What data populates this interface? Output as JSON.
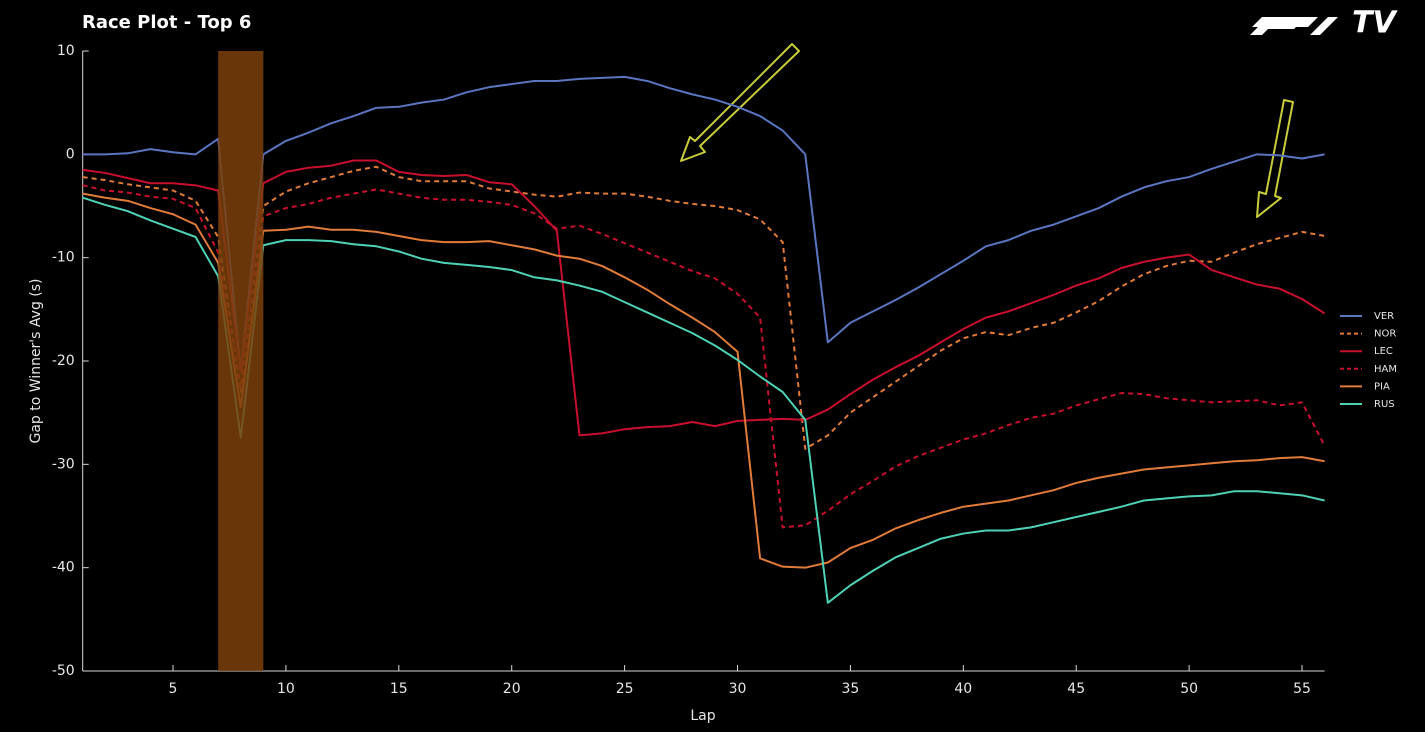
{
  "chart_data": {
    "type": "line",
    "title": "Race Plot - Top 6",
    "logo": "TV",
    "xlabel": "Lap",
    "ylabel": "Gap to Winner's Avg (s)",
    "xlim": [
      1,
      56
    ],
    "ylim": [
      -50,
      10
    ],
    "xticks": [
      5,
      10,
      15,
      20,
      25,
      30,
      35,
      40,
      45,
      50,
      55
    ],
    "yticks": [
      -50,
      -40,
      -30,
      -20,
      -10,
      0,
      10
    ],
    "grid": false,
    "legend": "right",
    "highlight": {
      "range": [
        7,
        9
      ],
      "color": "#7a3f0a"
    },
    "x": [
      1,
      2,
      3,
      4,
      5,
      6,
      7,
      8,
      9,
      10,
      11,
      12,
      13,
      14,
      15,
      16,
      17,
      18,
      19,
      20,
      21,
      22,
      23,
      24,
      25,
      26,
      27,
      28,
      29,
      30,
      31,
      32,
      33,
      34,
      35,
      36,
      37,
      38,
      39,
      40,
      41,
      42,
      43,
      44,
      45,
      46,
      47,
      48,
      49,
      50,
      51,
      52,
      53,
      54,
      55,
      56
    ],
    "series": [
      {
        "name": "VER",
        "color": "#5b75c0",
        "dash": false,
        "values": [
          0,
          0,
          0.1,
          0.5,
          0.2,
          0,
          1.5,
          -21,
          0,
          1.3,
          2.1,
          3,
          3.7,
          4.5,
          4.6,
          5,
          5.3,
          6,
          6.5,
          6.8,
          7.1,
          7.1,
          7.3,
          7.4,
          7.5,
          7.1,
          6.4,
          5.8,
          5.3,
          4.6,
          3.7,
          2.3,
          0,
          -18.2,
          -16.3,
          -15.2,
          -14.1,
          -12.9,
          -11.6,
          -10.3,
          -8.9,
          -8.3,
          -7.4,
          -6.8,
          -6,
          -5.2,
          -4.1,
          -3.2,
          -2.6,
          -2.2,
          -1.4,
          -0.7,
          0,
          -0.1,
          -0.4,
          0
        ]
      },
      {
        "name": "NOR",
        "color": "#e07b39",
        "dash": true,
        "values": [
          -2.2,
          -2.5,
          -2.9,
          -3.2,
          -3.5,
          -4.5,
          -8,
          -23,
          -5,
          -3.6,
          -2.8,
          -2.2,
          -1.6,
          -1.2,
          -2.2,
          -2.6,
          -2.6,
          -2.6,
          -3.3,
          -3.6,
          -3.9,
          -4.1,
          -3.7,
          -3.8,
          -3.8,
          -4.1,
          -4.5,
          -4.8,
          -5,
          -5.4,
          -6.3,
          -8.5,
          -28.5,
          -27.2,
          -25,
          -23.5,
          -22,
          -20.5,
          -19,
          -17.8,
          -17.2,
          -17.5,
          -16.8,
          -16.3,
          -15.3,
          -14.2,
          -12.8,
          -11.6,
          -10.8,
          -10.3,
          -10.4,
          -9.5,
          -8.7,
          -8.1,
          -7.5,
          -7.9
        ]
      },
      {
        "name": "LEC",
        "color": "#c8102e",
        "dash": false,
        "values": [
          -1.5,
          -1.8,
          -2.3,
          -2.8,
          -2.8,
          -3,
          -3.5,
          -21,
          -2.8,
          -1.7,
          -1.3,
          -1.1,
          -0.6,
          -0.6,
          -1.7,
          -2,
          -2.1,
          -2,
          -2.7,
          -2.9,
          -5,
          -7.4,
          -27.2,
          -27,
          -26.6,
          -26.4,
          -26.3,
          -25.9,
          -26.3,
          -25.8,
          -25.7,
          -25.6,
          -25.7,
          -24.7,
          -23.2,
          -21.8,
          -20.6,
          -19.5,
          -18.2,
          -16.9,
          -15.8,
          -15.2,
          -14.4,
          -13.6,
          -12.7,
          -12,
          -11,
          -10.4,
          -10,
          -9.7,
          -11.2,
          -11.9,
          -12.6,
          -13,
          -14,
          -15.4
        ]
      },
      {
        "name": "HAM",
        "color": "#c8102e",
        "dash": true,
        "values": [
          -3,
          -3.5,
          -3.7,
          -4.1,
          -4.3,
          -5.2,
          -9.5,
          -22.5,
          -6,
          -5.2,
          -4.8,
          -4.2,
          -3.8,
          -3.4,
          -3.8,
          -4.2,
          -4.4,
          -4.4,
          -4.6,
          -4.9,
          -5.7,
          -7.2,
          -6.9,
          -7.7,
          -8.6,
          -9.5,
          -10.4,
          -11.3,
          -12,
          -13.5,
          -15.8,
          -36.1,
          -35.9,
          -34.5,
          -32.9,
          -31.6,
          -30.2,
          -29.2,
          -28.4,
          -27.6,
          -27,
          -26.2,
          -25.5,
          -25.1,
          -24.3,
          -23.7,
          -23.1,
          -23.2,
          -23.6,
          -23.8,
          -24,
          -23.9,
          -23.8,
          -24.3,
          -24,
          -28.2
        ]
      },
      {
        "name": "PIA",
        "color": "#e07b39",
        "dash": false,
        "values": [
          -3.8,
          -4.2,
          -4.5,
          -5.2,
          -5.8,
          -6.8,
          -10.5,
          -24.5,
          -7.4,
          -7.3,
          -7,
          -7.3,
          -7.3,
          -7.5,
          -7.9,
          -8.3,
          -8.5,
          -8.5,
          -8.4,
          -8.8,
          -9.2,
          -9.8,
          -10.1,
          -10.8,
          -11.9,
          -13.1,
          -14.5,
          -15.8,
          -17.2,
          -19.1,
          -39.1,
          -39.9,
          -40,
          -39.5,
          -38.1,
          -37.3,
          -36.2,
          -35.4,
          -34.7,
          -34.1,
          -33.8,
          -33.5,
          -33,
          -32.5,
          -31.8,
          -31.3,
          -30.9,
          -30.5,
          -30.3,
          -30.1,
          -29.9,
          -29.7,
          -29.6,
          -29.4,
          -29.3,
          -29.7
        ]
      },
      {
        "name": "RUS",
        "color": "#4fd1b5",
        "dash": false,
        "values": [
          -4.2,
          -4.9,
          -5.5,
          -6.4,
          -7.2,
          -8,
          -11.8,
          -27.4,
          -8.8,
          -8.3,
          -8.3,
          -8.4,
          -8.7,
          -8.9,
          -9.4,
          -10.1,
          -10.5,
          -10.7,
          -10.9,
          -11.2,
          -11.9,
          -12.2,
          -12.7,
          -13.3,
          -14.3,
          -15.3,
          -16.3,
          -17.3,
          -18.5,
          -19.9,
          -21.5,
          -23,
          -25.7,
          -43.4,
          -41.7,
          -40.3,
          -39,
          -38.1,
          -37.2,
          -36.7,
          -36.4,
          -36.4,
          -36.1,
          -35.6,
          -35.1,
          -34.6,
          -34.1,
          -33.5,
          -33.3,
          -33.1,
          -33,
          -32.6,
          -32.6,
          -32.8,
          -33,
          -33.5
        ]
      }
    ]
  }
}
